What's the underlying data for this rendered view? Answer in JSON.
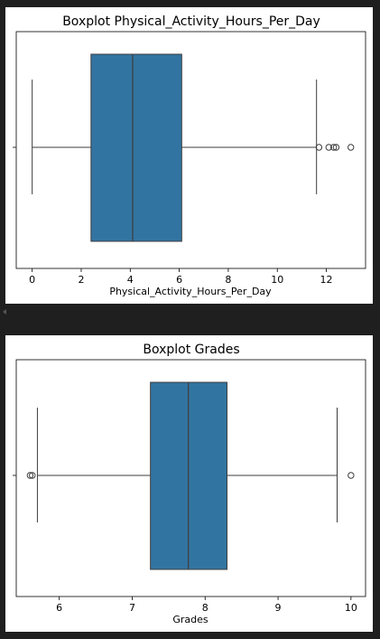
{
  "chart_data": [
    {
      "type": "box",
      "title": "Boxplot Physical_Activity_Hours_Per_Day",
      "xlabel": "Physical_Activity_Hours_Per_Day",
      "ylabel": "",
      "xlim": [
        -0.65,
        13.6
      ],
      "xticks": [
        0,
        2,
        4,
        6,
        8,
        10,
        12
      ],
      "tick_labels": [
        "0",
        "2",
        "4",
        "6",
        "8",
        "10",
        "12"
      ],
      "box": {
        "whisker_low": 0.0,
        "q1": 2.4,
        "median": 4.1,
        "q3": 6.1,
        "whisker_high": 11.6,
        "outliers": [
          11.7,
          12.1,
          12.3,
          12.4,
          13.0
        ]
      },
      "color": "#3274a1",
      "grid": false
    },
    {
      "type": "box",
      "title": "Boxplot Grades",
      "xlabel": "Grades",
      "ylabel": "",
      "xlim": [
        5.41,
        10.2
      ],
      "xticks": [
        6,
        7,
        8,
        9,
        10
      ],
      "tick_labels": [
        "6",
        "7",
        "8",
        "9",
        "10"
      ],
      "box": {
        "whisker_low": 5.7,
        "q1": 7.25,
        "median": 7.77,
        "q3": 8.3,
        "whisker_high": 9.81,
        "outliers": [
          5.6,
          5.63,
          10.0
        ]
      },
      "color": "#3274a1",
      "grid": false
    }
  ]
}
